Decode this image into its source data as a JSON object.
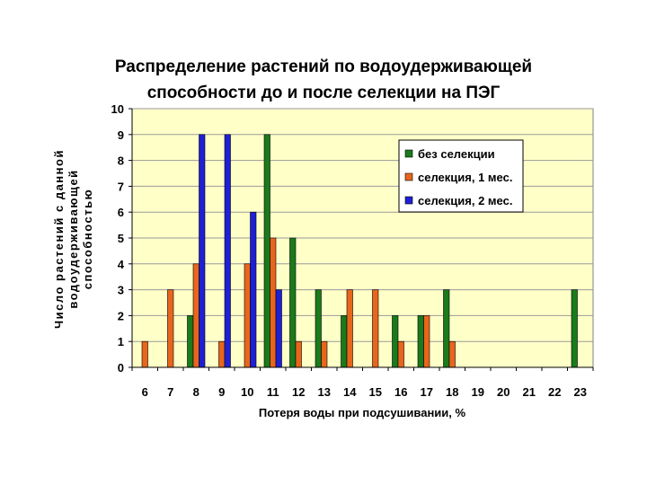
{
  "chart_data": {
    "type": "bar",
    "title_lines": [
      "Распределение растений по водоудерживающей",
      "способности до и после селекции на ПЭГ"
    ],
    "xlabel": "Потеря воды при подсушивании, %",
    "ylabel_lines": [
      "Число растений с данной",
      "водоудерживающей",
      "способностью"
    ],
    "categories": [
      "6",
      "7",
      "8",
      "9",
      "10",
      "11",
      "12",
      "13",
      "14",
      "15",
      "16",
      "17",
      "18",
      "19",
      "20",
      "21",
      "22",
      "23"
    ],
    "yticks": [
      "0",
      "1",
      "2",
      "3",
      "4",
      "5",
      "6",
      "7",
      "8",
      "9",
      "10"
    ],
    "ylim": [
      0,
      10
    ],
    "grid": true,
    "legend_position": "top-right",
    "series": [
      {
        "name": "без селекции",
        "color": "#1b7a1b",
        "values": [
          0,
          0,
          2,
          0,
          0,
          9,
          5,
          3,
          2,
          0,
          2,
          2,
          3,
          0,
          0,
          0,
          0,
          3
        ]
      },
      {
        "name": "селекция, 1 мес.",
        "color": "#e8661c",
        "values": [
          1,
          3,
          4,
          1,
          4,
          5,
          1,
          1,
          3,
          3,
          1,
          2,
          1,
          0,
          0,
          0,
          0,
          0
        ]
      },
      {
        "name": "селекция, 2 мес.",
        "color": "#1f1fd6",
        "values": [
          0,
          0,
          9,
          9,
          6,
          3,
          0,
          0,
          0,
          0,
          0,
          0,
          0,
          0,
          0,
          0,
          0,
          0
        ]
      }
    ],
    "colors": {
      "plot_background": "#ffffc8",
      "grid": "#9a9a9a"
    }
  }
}
